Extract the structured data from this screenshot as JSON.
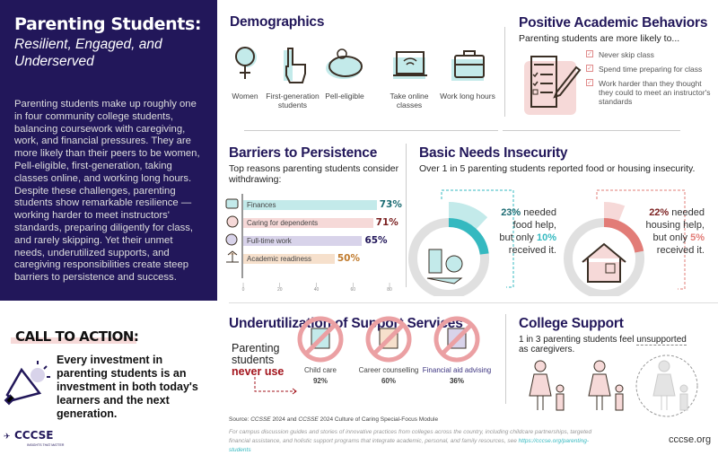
{
  "intro": {
    "title": "Parenting Students:",
    "subtitle": "Resilient, Engaged, and Underserved",
    "body": "Parenting students make up roughly one in four community college students, balancing coursework with caregiving, work, and financial pressures. They are more likely than their peers to be women, Pell-eligible, first-generation, taking classes online, and working long hours. Despite these challenges, parenting students show remarkable resilience — working harder to meet instructors' standards, preparing diligently for class, and rarely skipping. Yet their unmet needs, underutilized supports, and caregiving responsibilities create steep barriers to persistence and success."
  },
  "demographics": {
    "title": "Demographics",
    "items": [
      {
        "label": "Women",
        "icon": "female-symbol-icon"
      },
      {
        "label": "First-generation students",
        "icon": "raised-finger-icon"
      },
      {
        "label": "Pell-eligible",
        "icon": "piggy-bank-icon"
      },
      {
        "label": "Take online classes",
        "icon": "laptop-wifi-icon"
      },
      {
        "label": "Work long hours",
        "icon": "briefcase-icon"
      }
    ]
  },
  "behaviors": {
    "title": "Positive Academic Behaviors",
    "subtitle": "Parenting students are more likely to...",
    "items": [
      "Never skip class",
      "Spend time preparing for class",
      "Work harder than they thought they could to meet an instructor's standards"
    ]
  },
  "barriers": {
    "title": "Barriers to Persistence",
    "subtitle": "Top reasons parenting students consider withdrawing:"
  },
  "chart_data": {
    "type": "bar",
    "orientation": "horizontal",
    "categories": [
      "Finances",
      "Caring for dependents",
      "Full-time work",
      "Academic readiness"
    ],
    "values": [
      73,
      71,
      65,
      50
    ],
    "value_labels": [
      "73%",
      "71%",
      "65%",
      "50%"
    ],
    "xlim": [
      0,
      80
    ],
    "xticks": [
      "0",
      "20",
      "40",
      "60",
      "80"
    ],
    "colors": [
      "#c3eaea",
      "#f6d9d8",
      "#d8d3ea",
      "#f6e0cc"
    ],
    "label_colors": [
      "#1b6b72",
      "#7a1f1f",
      "#22175a",
      "#c07a2c"
    ]
  },
  "basic_needs": {
    "title": "Basic Needs Insecurity",
    "subtitle": "Over 1 in 5 parenting students reported food or housing insecurity.",
    "food": {
      "needed": "23%",
      "needed_value": 23,
      "received": "10%",
      "received_value": 10,
      "t1": "needed",
      "t2": "food help,",
      "t3": "but only",
      "t4": "received it.",
      "color": "#35b9c0",
      "light": "#c3eaea"
    },
    "housing": {
      "needed": "22%",
      "needed_value": 22,
      "received": "5%",
      "received_value": 5,
      "t1": "needed",
      "t2": "housing help,",
      "t3": "but only",
      "t4": "received it.",
      "color": "#e27c77",
      "light": "#f6d9d8"
    }
  },
  "cta": {
    "title": "CALL TO ACTION:",
    "text": "Every investment in parenting students is an investment in both today's learners and the next generation."
  },
  "logo": {
    "name": "CCCSE",
    "tagline": "INSIGHTS THAT MATTER"
  },
  "support": {
    "title": "Underutilization of Support Services",
    "lead1": "Parenting",
    "lead2": "students",
    "lead3": "never use",
    "items": [
      {
        "label": "Child care",
        "value": "92%"
      },
      {
        "label": "Career counselling",
        "value": "60%"
      },
      {
        "label": "Financial aid advising",
        "value": "36%"
      }
    ]
  },
  "college": {
    "title": "College Support",
    "text1": "1 in 3 parenting students feel",
    "text2": "unsupported",
    "text3": "as caregivers."
  },
  "source": {
    "prefix": "Source:",
    "s1": "CCSSE",
    "mid1": "2024 and",
    "s2": "CCSSE",
    "mid2": "2024 Culture of Caring Special-Focus Module"
  },
  "footer": {
    "text": "For campus discussion guides and stories of innovative practices from colleges across the country, including childcare partnerships, targeted financial assistance, and holistic support programs that integrate academic, personal, and family resources, see",
    "link": "https://cccse.org/parenting-students",
    "site": "cccse.org"
  }
}
